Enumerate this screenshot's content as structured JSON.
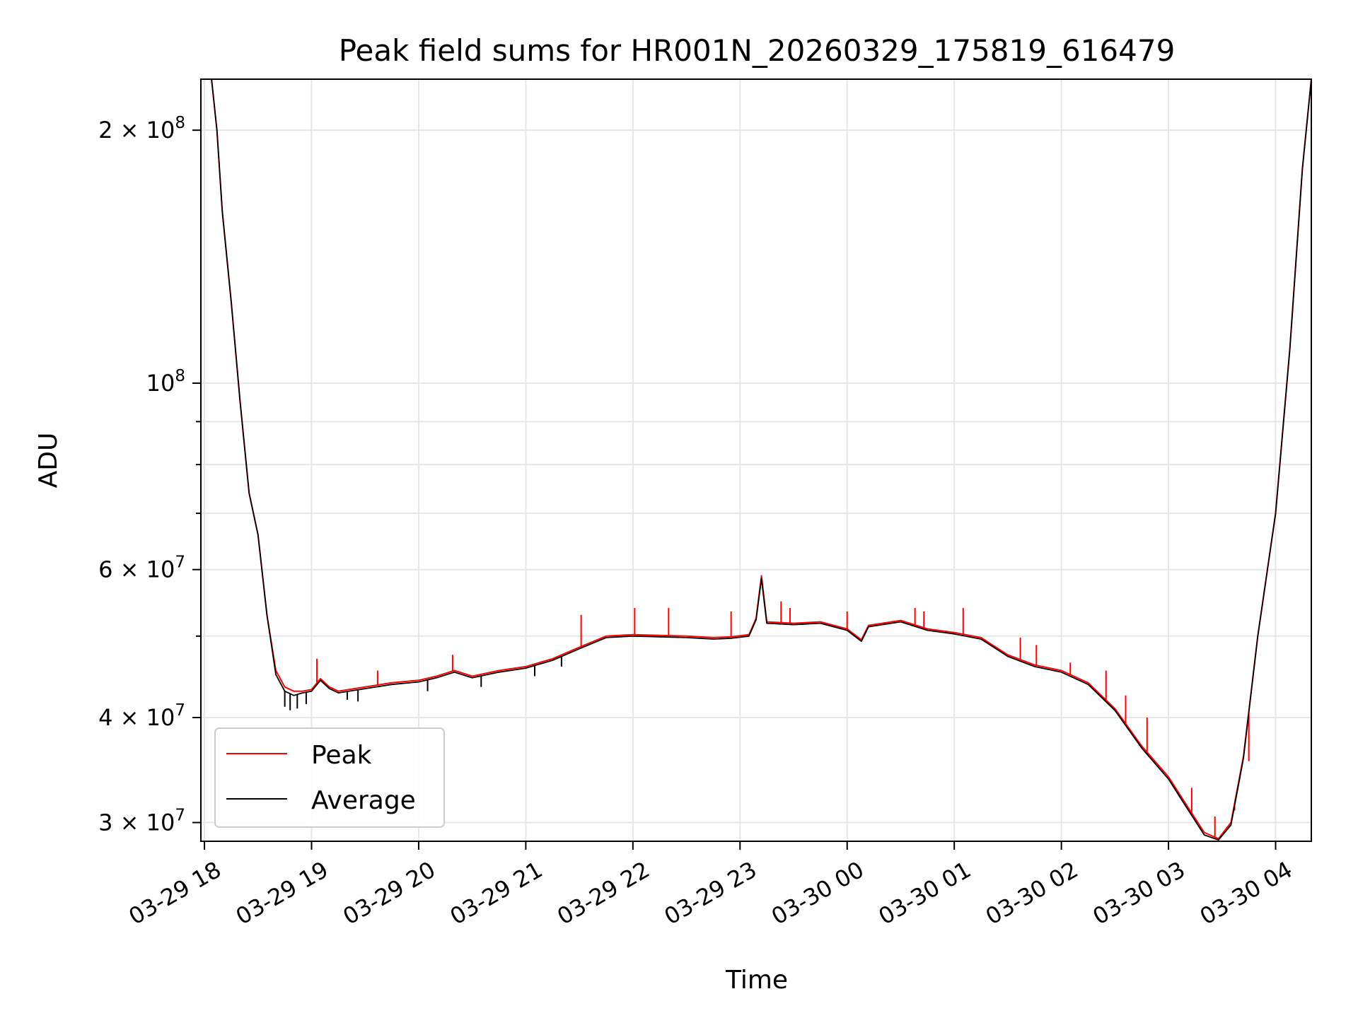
{
  "chart_data": {
    "type": "line",
    "title": "Peak field sums for HR001N_20260329_175819_616479",
    "xlabel": "Time",
    "ylabel": "ADU",
    "x_axis": {
      "kind": "datetime",
      "range": [
        "2026-03-29 17:58",
        "2026-03-30 04:20"
      ],
      "ticks": [
        {
          "value": "2026-03-29 18:00",
          "label": "03-29 18"
        },
        {
          "value": "2026-03-29 19:00",
          "label": "03-29 19"
        },
        {
          "value": "2026-03-29 20:00",
          "label": "03-29 20"
        },
        {
          "value": "2026-03-29 21:00",
          "label": "03-29 21"
        },
        {
          "value": "2026-03-29 22:00",
          "label": "03-29 22"
        },
        {
          "value": "2026-03-29 23:00",
          "label": "03-29 23"
        },
        {
          "value": "2026-03-30 00:00",
          "label": "03-30 00"
        },
        {
          "value": "2026-03-30 01:00",
          "label": "03-30 01"
        },
        {
          "value": "2026-03-30 02:00",
          "label": "03-30 02"
        },
        {
          "value": "2026-03-30 03:00",
          "label": "03-30 03"
        },
        {
          "value": "2026-03-30 04:00",
          "label": "03-30 04"
        }
      ]
    },
    "y_axis": {
      "scale": "log",
      "range": [
        28500000,
        230000000
      ],
      "ticks": [
        {
          "value": 30000000,
          "base": "3 × 10",
          "exp": "7"
        },
        {
          "value": 40000000,
          "base": "4 × 10",
          "exp": "7"
        },
        {
          "value": 60000000,
          "base": "6 × 10",
          "exp": "7"
        },
        {
          "value": 100000000,
          "base": "10",
          "exp": "8"
        },
        {
          "value": 200000000,
          "base": "2 × 10",
          "exp": "8"
        }
      ],
      "minor_ticks": [
        50000000,
        70000000,
        80000000,
        90000000
      ]
    },
    "grid": true,
    "legend": {
      "placement": "lower-left"
    },
    "series": [
      {
        "name": "Peak",
        "color": "#ff0000",
        "points": [
          [
            "2026-03-29 18:04",
            230000000
          ],
          [
            "2026-03-29 18:07",
            200000000
          ],
          [
            "2026-03-29 18:10",
            160000000
          ],
          [
            "2026-03-29 18:15",
            125000000
          ],
          [
            "2026-03-29 18:20",
            95000000
          ],
          [
            "2026-03-29 18:25",
            74000000
          ],
          [
            "2026-03-29 18:30",
            66000000
          ],
          [
            "2026-03-29 18:35",
            53000000
          ],
          [
            "2026-03-29 18:40",
            45500000
          ],
          [
            "2026-03-29 18:45",
            43500000
          ],
          [
            "2026-03-29 18:50",
            43000000
          ],
          [
            "2026-03-29 18:55",
            43000000
          ],
          [
            "2026-03-29 19:00",
            43200000
          ],
          [
            "2026-03-29 19:05",
            44500000
          ],
          [
            "2026-03-29 19:10",
            43500000
          ],
          [
            "2026-03-29 19:15",
            43000000
          ],
          [
            "2026-03-29 19:30",
            43500000
          ],
          [
            "2026-03-29 19:45",
            44000000
          ],
          [
            "2026-03-29 20:00",
            44300000
          ],
          [
            "2026-03-29 20:10",
            44800000
          ],
          [
            "2026-03-29 20:20",
            45500000
          ],
          [
            "2026-03-29 20:30",
            44800000
          ],
          [
            "2026-03-29 20:45",
            45500000
          ],
          [
            "2026-03-29 21:00",
            46000000
          ],
          [
            "2026-03-29 21:15",
            47000000
          ],
          [
            "2026-03-29 21:30",
            48500000
          ],
          [
            "2026-03-29 21:45",
            50000000
          ],
          [
            "2026-03-29 22:00",
            50200000
          ],
          [
            "2026-03-29 22:15",
            50100000
          ],
          [
            "2026-03-29 22:30",
            50000000
          ],
          [
            "2026-03-29 22:45",
            49800000
          ],
          [
            "2026-03-29 22:55",
            49900000
          ],
          [
            "2026-03-29 23:05",
            50200000
          ],
          [
            "2026-03-29 23:09",
            52500000
          ],
          [
            "2026-03-29 23:12",
            59000000
          ],
          [
            "2026-03-29 23:15",
            52000000
          ],
          [
            "2026-03-29 23:30",
            51800000
          ],
          [
            "2026-03-29 23:45",
            52000000
          ],
          [
            "2026-03-30 00:00",
            51000000
          ],
          [
            "2026-03-30 00:08",
            49500000
          ],
          [
            "2026-03-30 00:12",
            51500000
          ],
          [
            "2026-03-30 00:30",
            52200000
          ],
          [
            "2026-03-30 00:45",
            51000000
          ],
          [
            "2026-03-30 01:00",
            50500000
          ],
          [
            "2026-03-30 01:15",
            49800000
          ],
          [
            "2026-03-30 01:30",
            47500000
          ],
          [
            "2026-03-30 01:45",
            46200000
          ],
          [
            "2026-03-30 02:00",
            45500000
          ],
          [
            "2026-03-30 02:15",
            44000000
          ],
          [
            "2026-03-30 02:30",
            41000000
          ],
          [
            "2026-03-30 02:45",
            37000000
          ],
          [
            "2026-03-30 03:00",
            34000000
          ],
          [
            "2026-03-30 03:10",
            31500000
          ],
          [
            "2026-03-30 03:20",
            29200000
          ],
          [
            "2026-03-30 03:28",
            28700000
          ],
          [
            "2026-03-30 03:35",
            30000000
          ],
          [
            "2026-03-30 03:42",
            36000000
          ],
          [
            "2026-03-30 03:50",
            50000000
          ],
          [
            "2026-03-30 04:00",
            70000000
          ],
          [
            "2026-03-30 04:08",
            110000000
          ],
          [
            "2026-03-30 04:15",
            180000000
          ],
          [
            "2026-03-30 04:20",
            230000000
          ]
        ],
        "spikes": [
          [
            "2026-03-29 19:03",
            47000000
          ],
          [
            "2026-03-29 19:37",
            45500000
          ],
          [
            "2026-03-29 20:19",
            47500000
          ],
          [
            "2026-03-29 21:31",
            53000000
          ],
          [
            "2026-03-29 22:01",
            54000000
          ],
          [
            "2026-03-29 22:20",
            54000000
          ],
          [
            "2026-03-29 22:55",
            53500000
          ],
          [
            "2026-03-29 23:23",
            55000000
          ],
          [
            "2026-03-29 23:28",
            54000000
          ],
          [
            "2026-03-30 00:00",
            53500000
          ],
          [
            "2026-03-30 00:38",
            54000000
          ],
          [
            "2026-03-30 00:43",
            53500000
          ],
          [
            "2026-03-30 01:05",
            54000000
          ],
          [
            "2026-03-30 01:37",
            49800000
          ],
          [
            "2026-03-30 01:46",
            48800000
          ],
          [
            "2026-03-30 02:05",
            46500000
          ],
          [
            "2026-03-30 02:25",
            45500000
          ],
          [
            "2026-03-30 02:36",
            42500000
          ],
          [
            "2026-03-30 02:48",
            40000000
          ],
          [
            "2026-03-30 03:13",
            33000000
          ],
          [
            "2026-03-30 03:26",
            30500000
          ],
          [
            "2026-03-30 03:37",
            31000000
          ],
          [
            "2026-03-30 03:45",
            35500000
          ]
        ]
      },
      {
        "name": "Average",
        "color": "#000000",
        "points": [
          [
            "2026-03-29 18:04",
            230000000
          ],
          [
            "2026-03-29 18:07",
            200000000
          ],
          [
            "2026-03-29 18:10",
            160000000
          ],
          [
            "2026-03-29 18:15",
            125000000
          ],
          [
            "2026-03-29 18:20",
            95000000
          ],
          [
            "2026-03-29 18:25",
            74000000
          ],
          [
            "2026-03-29 18:30",
            66000000
          ],
          [
            "2026-03-29 18:35",
            53000000
          ],
          [
            "2026-03-29 18:40",
            45000000
          ],
          [
            "2026-03-29 18:45",
            43000000
          ],
          [
            "2026-03-29 18:50",
            42500000
          ],
          [
            "2026-03-29 18:55",
            42800000
          ],
          [
            "2026-03-29 19:00",
            43000000
          ],
          [
            "2026-03-29 19:05",
            44300000
          ],
          [
            "2026-03-29 19:10",
            43300000
          ],
          [
            "2026-03-29 19:15",
            42800000
          ],
          [
            "2026-03-29 19:30",
            43300000
          ],
          [
            "2026-03-29 19:45",
            43800000
          ],
          [
            "2026-03-29 20:00",
            44100000
          ],
          [
            "2026-03-29 20:10",
            44600000
          ],
          [
            "2026-03-29 20:20",
            45300000
          ],
          [
            "2026-03-29 20:30",
            44600000
          ],
          [
            "2026-03-29 20:45",
            45300000
          ],
          [
            "2026-03-29 21:00",
            45800000
          ],
          [
            "2026-03-29 21:15",
            46800000
          ],
          [
            "2026-03-29 21:30",
            48300000
          ],
          [
            "2026-03-29 21:45",
            49800000
          ],
          [
            "2026-03-29 22:00",
            50000000
          ],
          [
            "2026-03-29 22:15",
            49900000
          ],
          [
            "2026-03-29 22:30",
            49800000
          ],
          [
            "2026-03-29 22:45",
            49600000
          ],
          [
            "2026-03-29 22:55",
            49700000
          ],
          [
            "2026-03-29 23:05",
            50000000
          ],
          [
            "2026-03-29 23:09",
            52300000
          ],
          [
            "2026-03-29 23:12",
            58500000
          ],
          [
            "2026-03-29 23:15",
            51800000
          ],
          [
            "2026-03-29 23:30",
            51600000
          ],
          [
            "2026-03-29 23:45",
            51800000
          ],
          [
            "2026-03-30 00:00",
            50800000
          ],
          [
            "2026-03-30 00:08",
            49300000
          ],
          [
            "2026-03-30 00:12",
            51300000
          ],
          [
            "2026-03-30 00:30",
            52000000
          ],
          [
            "2026-03-30 00:45",
            50800000
          ],
          [
            "2026-03-30 01:00",
            50300000
          ],
          [
            "2026-03-30 01:15",
            49600000
          ],
          [
            "2026-03-30 01:30",
            47300000
          ],
          [
            "2026-03-30 01:45",
            46000000
          ],
          [
            "2026-03-30 02:00",
            45300000
          ],
          [
            "2026-03-30 02:15",
            43800000
          ],
          [
            "2026-03-30 02:30",
            40800000
          ],
          [
            "2026-03-30 02:45",
            36800000
          ],
          [
            "2026-03-30 03:00",
            33800000
          ],
          [
            "2026-03-30 03:10",
            31300000
          ],
          [
            "2026-03-30 03:20",
            29000000
          ],
          [
            "2026-03-30 03:28",
            28600000
          ],
          [
            "2026-03-30 03:35",
            29800000
          ],
          [
            "2026-03-30 03:42",
            35800000
          ],
          [
            "2026-03-30 03:50",
            50000000
          ],
          [
            "2026-03-30 04:00",
            70000000
          ],
          [
            "2026-03-30 04:08",
            110000000
          ],
          [
            "2026-03-30 04:15",
            180000000
          ],
          [
            "2026-03-30 04:20",
            230000000
          ]
        ],
        "dips": [
          [
            "2026-03-29 18:45",
            41200000
          ],
          [
            "2026-03-29 18:48",
            40800000
          ],
          [
            "2026-03-29 18:52",
            41000000
          ],
          [
            "2026-03-29 18:57",
            41500000
          ],
          [
            "2026-03-29 19:20",
            42000000
          ],
          [
            "2026-03-29 19:26",
            41800000
          ],
          [
            "2026-03-29 20:05",
            43000000
          ],
          [
            "2026-03-29 20:35",
            43500000
          ],
          [
            "2026-03-29 21:05",
            44800000
          ],
          [
            "2026-03-29 21:20",
            46000000
          ]
        ]
      }
    ]
  }
}
